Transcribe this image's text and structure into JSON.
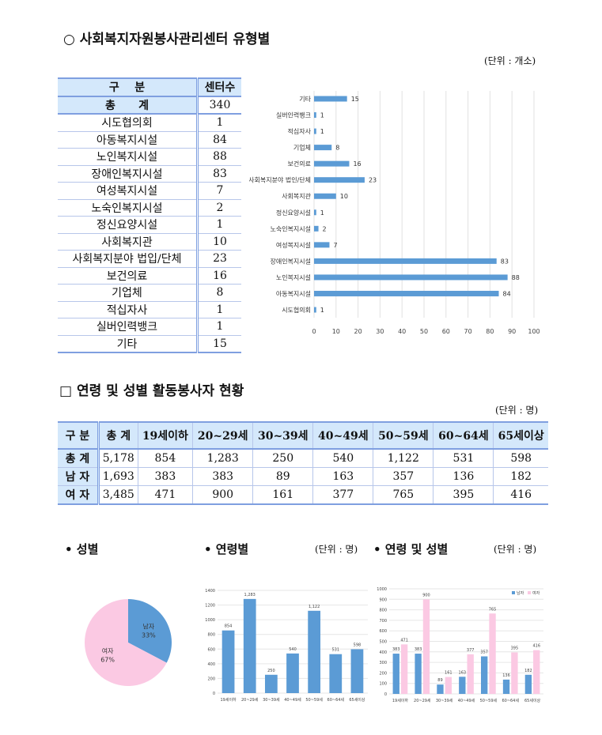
{
  "section1": {
    "title": "○ 사회복지자원봉사관리센터 유형별",
    "unit": "(단위 : 개소)",
    "table": {
      "headers": [
        "구    분",
        "센터수"
      ],
      "total": {
        "label": "총      계",
        "value": "340"
      },
      "rows": [
        {
          "label": "시도협의회",
          "value": "1"
        },
        {
          "label": "아동복지시설",
          "value": "84"
        },
        {
          "label": "노인복지시설",
          "value": "88"
        },
        {
          "label": "장애인복지시설",
          "value": "83"
        },
        {
          "label": "여성복지시설",
          "value": "7"
        },
        {
          "label": "노숙인복지시설",
          "value": "2"
        },
        {
          "label": "정신요양시설",
          "value": "1"
        },
        {
          "label": "사회복지관",
          "value": "10"
        },
        {
          "label": "사회복지분야 법입/단체",
          "value": "23"
        },
        {
          "label": "보건의료",
          "value": "16"
        },
        {
          "label": "기업체",
          "value": "8"
        },
        {
          "label": "적십자사",
          "value": "1"
        },
        {
          "label": "실버인력뱅크",
          "value": "1"
        },
        {
          "label": "기타",
          "value": "15"
        }
      ]
    }
  },
  "section2": {
    "title": "□ 연령 및 성별 활동봉사자 현황",
    "unit": "(단위 : 명)",
    "table": {
      "headers": [
        "구 분",
        "총 계",
        "19세이하",
        "20~29세",
        "30~39세",
        "40~49세",
        "50~59세",
        "60~64세",
        "65세이상"
      ],
      "rows": [
        [
          "총 계",
          "5,178",
          "854",
          "1,283",
          "250",
          "540",
          "1,122",
          "531",
          "598"
        ],
        [
          "남 자",
          "1,693",
          "383",
          "383",
          "89",
          "163",
          "357",
          "136",
          "182"
        ],
        [
          "여 자",
          "3,485",
          "471",
          "900",
          "161",
          "377",
          "765",
          "395",
          "416"
        ]
      ]
    }
  },
  "section3": {
    "gender_title": "• 성별",
    "age_title": "• 연령별",
    "age_unit": "(단위 : 명)",
    "agesex_title": "• 연령 및 성별",
    "agesex_unit": "(단위 : 명)"
  },
  "colors": {
    "blue": "#5b9bd5",
    "pink": "#fbc9e3",
    "header_bg": "#d4e8fb",
    "border": "#7f9fe0"
  },
  "chart_data": [
    {
      "type": "bar",
      "orientation": "horizontal",
      "categories": [
        "시도협의회",
        "아동복지시설",
        "노인복지시설",
        "장애인복지시설",
        "여성복지시설",
        "노숙인복지시설",
        "정신요양시설",
        "사회복지관",
        "사회복지분야 법인/단체",
        "보건의료",
        "기업체",
        "적십자사",
        "실버인력뱅크",
        "기타"
      ],
      "values": [
        1,
        84,
        88,
        83,
        7,
        2,
        1,
        10,
        23,
        16,
        8,
        1,
        1,
        15
      ],
      "xlim": [
        0,
        100
      ],
      "xticks": [
        "0",
        "10",
        "20",
        "30",
        "40",
        "50",
        "60",
        "70",
        "80",
        "90",
        "100"
      ],
      "grid": true,
      "color": "#5b9bd5"
    },
    {
      "type": "pie",
      "slices": [
        {
          "label": "남자",
          "pct_label": "33%",
          "value": 1693,
          "color": "#5b9bd5"
        },
        {
          "label": "여자",
          "pct_label": "67%",
          "value": 3485,
          "color": "#fbc9e3"
        }
      ]
    },
    {
      "type": "bar",
      "categories": [
        "19세이하",
        "20~29세",
        "30~39세",
        "40~49세",
        "50~59세",
        "60~64세",
        "65세이상"
      ],
      "values": [
        854,
        1283,
        250,
        540,
        1122,
        531,
        598
      ],
      "value_labels": [
        "854",
        "1,283",
        "250",
        "540",
        "1,122",
        "531",
        "598"
      ],
      "ylim": [
        0,
        1400
      ],
      "yticks": [
        "0",
        "200",
        "400",
        "600",
        "800",
        "1000",
        "1200",
        "1400"
      ],
      "grid": true,
      "color": "#5b9bd5"
    },
    {
      "type": "bar",
      "categories": [
        "19세이하",
        "20~29세",
        "30~39세",
        "40~49세",
        "50~59세",
        "60~64세",
        "65세이상"
      ],
      "series": [
        {
          "name": "남자",
          "values": [
            383,
            383,
            89,
            163,
            357,
            136,
            182
          ],
          "color": "#5b9bd5"
        },
        {
          "name": "여자",
          "values": [
            471,
            900,
            161,
            377,
            765,
            395,
            416
          ],
          "color": "#fbc9e3"
        }
      ],
      "ylim": [
        0,
        1000
      ],
      "yticks": [
        "0",
        "100",
        "200",
        "300",
        "400",
        "500",
        "600",
        "700",
        "800",
        "900",
        "1000"
      ],
      "legend": "top-right",
      "grid": true
    }
  ]
}
